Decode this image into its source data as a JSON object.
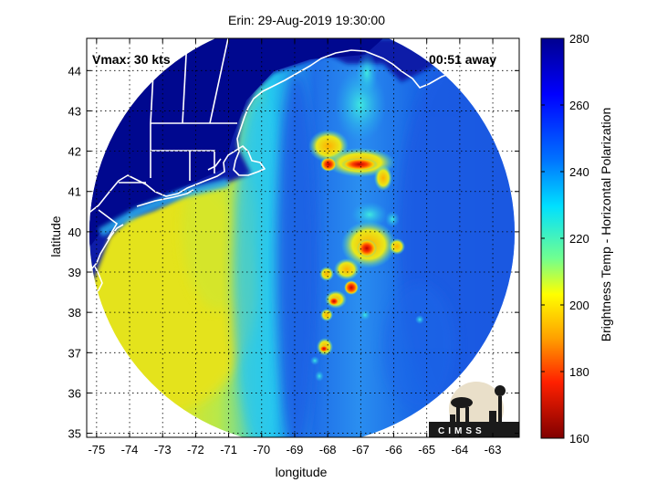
{
  "title": "Erin: 29-Aug-2019 19:30:00",
  "overlay": {
    "vmax_label": "Vmax: 30 kts",
    "time_label": "00:51 away"
  },
  "axes": {
    "xlabel": "longitude",
    "ylabel": "latitude",
    "xticks": [
      "-75",
      "-74",
      "-73",
      "-72",
      "-71",
      "-70",
      "-69",
      "-68",
      "-67",
      "-66",
      "-65",
      "-64",
      "-63"
    ],
    "yticks": [
      "44",
      "43",
      "42",
      "41",
      "40",
      "39",
      "38",
      "37",
      "36",
      "35"
    ],
    "xlim": [
      -75.3,
      -62.2
    ],
    "ylim": [
      34.9,
      44.8
    ],
    "grid": "dotted"
  },
  "colorbar": {
    "label": "Brightness Temp - Horizontal Polarization",
    "ticks": [
      "280",
      "260",
      "240",
      "220",
      "200",
      "180",
      "160"
    ],
    "range": [
      160,
      280
    ],
    "colormap": "jet"
  },
  "logo": {
    "text": "CIMSS"
  },
  "colors": {
    "deep_blue": "#00008f",
    "blue": "#1a50e6",
    "cyan": "#19d2f5",
    "yellow": "#e8e81a",
    "red": "#e01010",
    "dark_red": "#800000"
  }
}
